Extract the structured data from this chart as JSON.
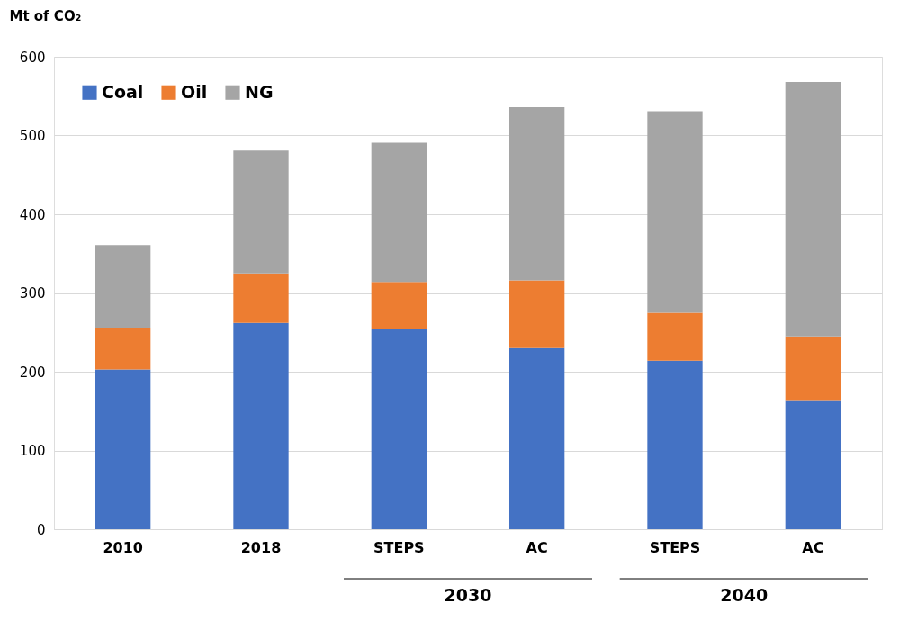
{
  "chart_data": {
    "type": "bar",
    "stacked": true,
    "ylabel": "Mt of CO₂",
    "categories": [
      "2010",
      "2018",
      "STEPS",
      "AC",
      "STEPS",
      "AC"
    ],
    "series": [
      {
        "name": "Coal",
        "color": "#4472c4",
        "values": [
          203,
          262,
          255,
          230,
          214,
          164
        ]
      },
      {
        "name": "Oil",
        "color": "#ed7d31",
        "values": [
          53,
          63,
          59,
          86,
          61,
          81
        ]
      },
      {
        "name": "NG",
        "color": "#a5a5a5",
        "values": [
          105,
          156,
          177,
          220,
          256,
          323
        ]
      }
    ],
    "ylim": [
      0,
      600
    ],
    "yticks": [
      0,
      100,
      200,
      300,
      400,
      500,
      600
    ],
    "grid": "y",
    "legend": "top left",
    "annotations": [
      "2030",
      "2040"
    ]
  }
}
